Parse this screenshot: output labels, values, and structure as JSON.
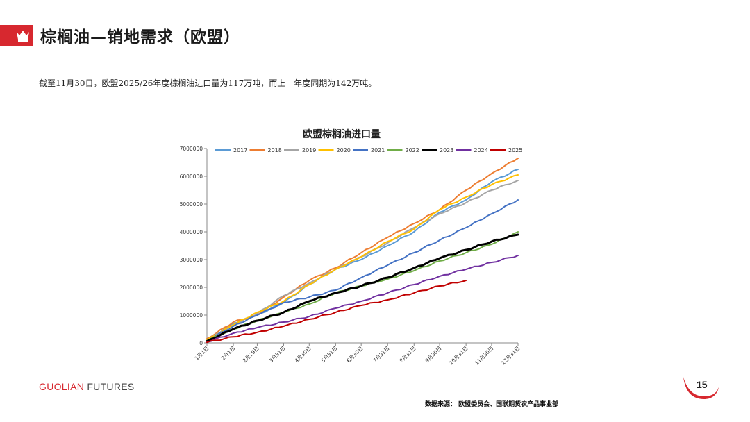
{
  "slide": {
    "title": "棕榈油—销地需求（欧盟）",
    "subtitle": "截至11月30日，欧盟2025/26年度棕榈油进口量为117万吨，而上一年度同期为142万吨。",
    "brand_part1": "GUOLIAN",
    "brand_part2": " FUTURES",
    "page_number": "15",
    "source": "数据来源：  欧盟委员会、国联期货农产品事业部",
    "accent_color": "#d7282f",
    "logo_icon": "crown-icon"
  },
  "chart_data": {
    "type": "line",
    "title": "欧盟棕榈油进口量",
    "xlabel": "",
    "ylabel": "",
    "x_tick_labels": [
      "1月1日",
      "2月1日",
      "2月29日",
      "3月31日",
      "4月30日",
      "5月31日",
      "6月30日",
      "7月31日",
      "8月31日",
      "9月30日",
      "10月31日",
      "11月30日",
      "12月31日"
    ],
    "x_tick_days": [
      1,
      32,
      60,
      91,
      121,
      152,
      182,
      213,
      244,
      274,
      305,
      335,
      366
    ],
    "xlim": [
      1,
      366
    ],
    "ylim": [
      0,
      7000000
    ],
    "y_ticks": [
      0,
      1000000,
      2000000,
      3000000,
      4000000,
      5000000,
      6000000,
      7000000
    ],
    "grid": false,
    "legend_position": "top",
    "series": [
      {
        "name": "2017",
        "color": "#5b9bd5",
        "width": 2,
        "points": [
          [
            1,
            100000
          ],
          [
            32,
            700000
          ],
          [
            60,
            1000000
          ],
          [
            91,
            1450000
          ],
          [
            121,
            2100000
          ],
          [
            152,
            2650000
          ],
          [
            182,
            3000000
          ],
          [
            213,
            3500000
          ],
          [
            244,
            4000000
          ],
          [
            274,
            4700000
          ],
          [
            305,
            5150000
          ],
          [
            335,
            5800000
          ],
          [
            366,
            6250000
          ]
        ]
      },
      {
        "name": "2018",
        "color": "#ed7d31",
        "width": 2,
        "points": [
          [
            1,
            150000
          ],
          [
            32,
            750000
          ],
          [
            60,
            1000000
          ],
          [
            91,
            1650000
          ],
          [
            121,
            2250000
          ],
          [
            152,
            2700000
          ],
          [
            182,
            3250000
          ],
          [
            213,
            3800000
          ],
          [
            244,
            4300000
          ],
          [
            274,
            4800000
          ],
          [
            305,
            5500000
          ],
          [
            335,
            6100000
          ],
          [
            366,
            6650000
          ]
        ]
      },
      {
        "name": "2019",
        "color": "#a5a5a5",
        "width": 2,
        "points": [
          [
            1,
            100000
          ],
          [
            32,
            650000
          ],
          [
            60,
            1050000
          ],
          [
            91,
            1700000
          ],
          [
            121,
            2150000
          ],
          [
            152,
            2650000
          ],
          [
            182,
            3100000
          ],
          [
            213,
            3600000
          ],
          [
            244,
            4150000
          ],
          [
            274,
            4650000
          ],
          [
            305,
            5050000
          ],
          [
            335,
            5500000
          ],
          [
            366,
            5850000
          ]
        ]
      },
      {
        "name": "2020",
        "color": "#ffc000",
        "width": 2,
        "points": [
          [
            1,
            100000
          ],
          [
            32,
            650000
          ],
          [
            60,
            1100000
          ],
          [
            91,
            1500000
          ],
          [
            121,
            2100000
          ],
          [
            152,
            2650000
          ],
          [
            182,
            3100000
          ],
          [
            213,
            3650000
          ],
          [
            244,
            4100000
          ],
          [
            274,
            4800000
          ],
          [
            305,
            5250000
          ],
          [
            335,
            5700000
          ],
          [
            366,
            6050000
          ]
        ]
      },
      {
        "name": "2021",
        "color": "#4472c4",
        "width": 2,
        "points": [
          [
            1,
            80000
          ],
          [
            32,
            600000
          ],
          [
            60,
            1000000
          ],
          [
            91,
            1450000
          ],
          [
            121,
            1650000
          ],
          [
            152,
            1900000
          ],
          [
            182,
            2350000
          ],
          [
            213,
            2800000
          ],
          [
            244,
            3250000
          ],
          [
            274,
            3700000
          ],
          [
            305,
            4150000
          ],
          [
            335,
            4650000
          ],
          [
            366,
            5150000
          ]
        ]
      },
      {
        "name": "2022",
        "color": "#70ad47",
        "width": 2,
        "points": [
          [
            1,
            80000
          ],
          [
            32,
            500000
          ],
          [
            60,
            800000
          ],
          [
            91,
            1100000
          ],
          [
            121,
            1400000
          ],
          [
            152,
            1800000
          ],
          [
            182,
            2050000
          ],
          [
            213,
            2300000
          ],
          [
            244,
            2600000
          ],
          [
            274,
            2950000
          ],
          [
            305,
            3250000
          ],
          [
            335,
            3550000
          ],
          [
            366,
            4000000
          ]
        ]
      },
      {
        "name": "2023",
        "color": "#000000",
        "width": 3,
        "points": [
          [
            1,
            60000
          ],
          [
            32,
            500000
          ],
          [
            60,
            800000
          ],
          [
            91,
            1100000
          ],
          [
            121,
            1500000
          ],
          [
            152,
            1800000
          ],
          [
            182,
            2050000
          ],
          [
            213,
            2350000
          ],
          [
            244,
            2700000
          ],
          [
            274,
            3050000
          ],
          [
            305,
            3350000
          ],
          [
            335,
            3650000
          ],
          [
            366,
            3900000
          ]
        ]
      },
      {
        "name": "2024",
        "color": "#7030a0",
        "width": 2,
        "points": [
          [
            1,
            30000
          ],
          [
            32,
            350000
          ],
          [
            60,
            550000
          ],
          [
            91,
            750000
          ],
          [
            121,
            950000
          ],
          [
            152,
            1250000
          ],
          [
            182,
            1500000
          ],
          [
            213,
            1800000
          ],
          [
            244,
            2100000
          ],
          [
            274,
            2400000
          ],
          [
            305,
            2650000
          ],
          [
            335,
            2900000
          ],
          [
            366,
            3150000
          ]
        ]
      },
      {
        "name": "2025",
        "color": "#c00000",
        "width": 2,
        "points": [
          [
            1,
            20000
          ],
          [
            32,
            220000
          ],
          [
            60,
            380000
          ],
          [
            91,
            600000
          ],
          [
            121,
            850000
          ],
          [
            152,
            1100000
          ],
          [
            182,
            1350000
          ],
          [
            213,
            1550000
          ],
          [
            244,
            1800000
          ],
          [
            274,
            2050000
          ],
          [
            305,
            2250000
          ]
        ]
      }
    ]
  }
}
